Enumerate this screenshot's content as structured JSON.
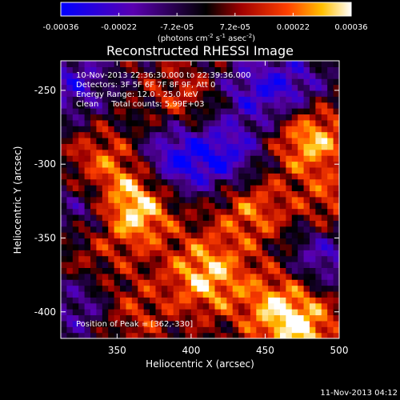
{
  "chart_data": {
    "type": "heatmap",
    "title": "Reconstructed RHESSI Image",
    "xlabel": "Heliocentric X (arcsec)",
    "ylabel": "Heliocentric Y (arcsec)",
    "xlim": [
      312,
      500
    ],
    "ylim": [
      -418,
      -230
    ],
    "x_ticks": [
      350,
      400,
      450,
      500
    ],
    "y_ticks": [
      -250,
      -300,
      -350,
      -400
    ],
    "colorbar": {
      "ticks": [
        "-0.00036",
        "-0.00022",
        "-7.2e-05",
        "7.2e-05",
        "0.00022",
        "0.00036"
      ],
      "range": [
        -0.00036,
        0.00036
      ],
      "units_text": "(photons cm",
      "units_exp1": "-2",
      "units_mid": " s",
      "units_exp2": "-1",
      "units_tail": " asec",
      "units_exp3": "-2",
      "units_end": ")"
    },
    "annotations": [
      "10-Nov-2013 22:36:30.000 to 22:39:36.000",
      "Detectors: 3F 5F 6F 7F 8F 9F, Att 0",
      "Energy Range: 12.0 - 25.0 keV",
      "Clean     Total counts: 5.99E+03"
    ],
    "peak_label": "Position of Peak = [362,-330]",
    "peak": [
      362,
      -330
    ],
    "hot_spots": [
      {
        "x": 362,
        "y": -330,
        "value": 0.00036
      },
      {
        "x": 480,
        "y": -280,
        "value": 0.00033
      },
      {
        "x": 410,
        "y": -375,
        "value": 0.0003
      },
      {
        "x": 340,
        "y": -300,
        "value": 0.0002
      },
      {
        "x": 440,
        "y": -330,
        "value": 0.00022
      },
      {
        "x": 475,
        "y": -410,
        "value": 0.00028
      },
      {
        "x": 455,
        "y": -395,
        "value": 0.0002
      },
      {
        "x": 395,
        "y": -258,
        "value": 0.00016
      },
      {
        "x": 360,
        "y": -400,
        "value": 0.00014
      },
      {
        "x": 330,
        "y": -360,
        "value": 0.00012
      },
      {
        "x": 495,
        "y": -330,
        "value": 0.00018
      }
    ],
    "cold_spots": [
      {
        "x": 320,
        "y": -245,
        "value": -0.00022
      },
      {
        "x": 390,
        "y": -295,
        "value": -0.0003
      },
      {
        "x": 425,
        "y": -295,
        "value": -0.00026
      },
      {
        "x": 470,
        "y": -250,
        "value": -0.00024
      },
      {
        "x": 330,
        "y": -330,
        "value": -0.0002
      },
      {
        "x": 490,
        "y": -360,
        "value": -0.00024
      },
      {
        "x": 325,
        "y": -395,
        "value": -0.00018
      },
      {
        "x": 440,
        "y": -250,
        "value": -0.00018
      }
    ]
  },
  "timestamp": "11-Nov-2013 04:12"
}
